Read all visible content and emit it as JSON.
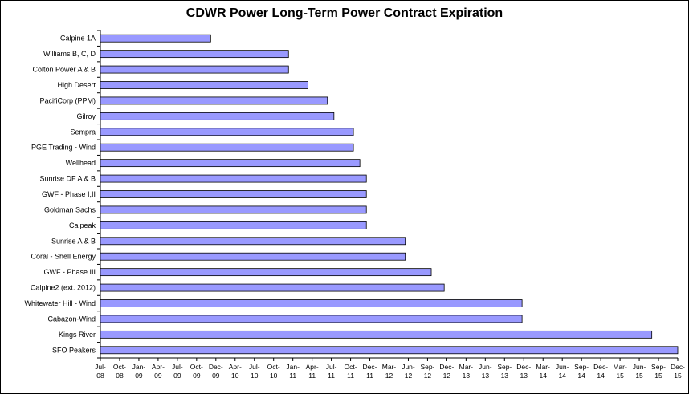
{
  "chart_data": {
    "type": "bar",
    "orientation": "horizontal",
    "title": "CDWR Power Long-Term Power Contract Expiration",
    "bar_color": "#9999ff",
    "bar_edge_color": "#000000",
    "xaxis_start": "Jul-08",
    "xaxis_end": "Dec-15",
    "x_tick_labels": [
      [
        "Jul-",
        "08"
      ],
      [
        "Oct-",
        "08"
      ],
      [
        "Jan-",
        "09"
      ],
      [
        "Apr-",
        "09"
      ],
      [
        "Jul-",
        "09"
      ],
      [
        "Oct-",
        "09"
      ],
      [
        "Dec-",
        "09"
      ],
      [
        "Apr-",
        "10"
      ],
      [
        "Jul-",
        "10"
      ],
      [
        "Oct-",
        "10"
      ],
      [
        "Jan-",
        "11"
      ],
      [
        "Apr-",
        "11"
      ],
      [
        "Jul-",
        "11"
      ],
      [
        "Oct-",
        "11"
      ],
      [
        "Dec-",
        "11"
      ],
      [
        "Mar-",
        "12"
      ],
      [
        "Jun-",
        "12"
      ],
      [
        "Sep-",
        "12"
      ],
      [
        "Dec-",
        "12"
      ],
      [
        "Mar-",
        "13"
      ],
      [
        "Jun-",
        "13"
      ],
      [
        "Sep-",
        "13"
      ],
      [
        "Dec-",
        "13"
      ],
      [
        "Mar-",
        "14"
      ],
      [
        "Jun-",
        "14"
      ],
      [
        "Sep-",
        "14"
      ],
      [
        "Dec-",
        "14"
      ],
      [
        "Mar-",
        "15"
      ],
      [
        "Jun-",
        "15"
      ],
      [
        "Sep-",
        "15"
      ],
      [
        "Dec-",
        "15"
      ]
    ],
    "categories": [
      "Calpine 1A",
      "Williams B, C, D",
      "Colton Power A & B",
      "High Desert",
      "PacifiCorp (PPM)",
      "Gilroy",
      "Sempra",
      "PGE Trading - Wind",
      "Wellhead",
      "Sunrise DF A & B",
      "GWF - Phase I,II",
      "Goldman Sachs",
      "Calpeak",
      "Sunrise  A & B",
      "Coral - Shell Energy",
      "GWF - Phase III",
      "Calpine2 (ext. 2012)",
      "Whitewater Hill - Wind",
      "Cabazon-Wind",
      "Kings River",
      "SFO Peakers"
    ],
    "values": [
      "Dec-09",
      "Dec-10",
      "Dec-10",
      "Mar-11",
      "Jun-11",
      "Jul-11",
      "Oct-11",
      "Oct-11",
      "Nov-11",
      "Dec-11",
      "Dec-11",
      "Dec-11",
      "Dec-11",
      "Jun-12",
      "Jun-12",
      "Oct-12",
      "Dec-12",
      "Dec-13",
      "Dec-13",
      "Aug-15",
      "Dec-15"
    ]
  }
}
